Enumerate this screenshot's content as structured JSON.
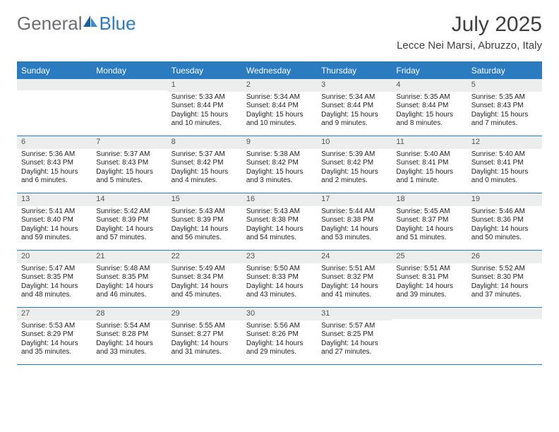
{
  "brand": {
    "word1": "General",
    "word2": "Blue",
    "word1_color": "#6d6e71",
    "word2_color": "#2a7bbf",
    "sail_color_dark": "#1f5f99",
    "sail_color_light": "#3a8ed0"
  },
  "title": "July 2025",
  "location": "Lecce Nei Marsi, Abruzzo, Italy",
  "header_bg": "#2a7bbf",
  "header_fg": "#ffffff",
  "daynum_bg": "#eceded",
  "rule_color": "#2a7bbf",
  "weekdays": [
    "Sunday",
    "Monday",
    "Tuesday",
    "Wednesday",
    "Thursday",
    "Friday",
    "Saturday"
  ],
  "weeks": [
    [
      {
        "n": "",
        "sr": "",
        "ss": "",
        "dl": ""
      },
      {
        "n": "",
        "sr": "",
        "ss": "",
        "dl": ""
      },
      {
        "n": "1",
        "sr": "Sunrise: 5:33 AM",
        "ss": "Sunset: 8:44 PM",
        "dl": "Daylight: 15 hours and 10 minutes."
      },
      {
        "n": "2",
        "sr": "Sunrise: 5:34 AM",
        "ss": "Sunset: 8:44 PM",
        "dl": "Daylight: 15 hours and 10 minutes."
      },
      {
        "n": "3",
        "sr": "Sunrise: 5:34 AM",
        "ss": "Sunset: 8:44 PM",
        "dl": "Daylight: 15 hours and 9 minutes."
      },
      {
        "n": "4",
        "sr": "Sunrise: 5:35 AM",
        "ss": "Sunset: 8:44 PM",
        "dl": "Daylight: 15 hours and 8 minutes."
      },
      {
        "n": "5",
        "sr": "Sunrise: 5:35 AM",
        "ss": "Sunset: 8:43 PM",
        "dl": "Daylight: 15 hours and 7 minutes."
      }
    ],
    [
      {
        "n": "6",
        "sr": "Sunrise: 5:36 AM",
        "ss": "Sunset: 8:43 PM",
        "dl": "Daylight: 15 hours and 6 minutes."
      },
      {
        "n": "7",
        "sr": "Sunrise: 5:37 AM",
        "ss": "Sunset: 8:43 PM",
        "dl": "Daylight: 15 hours and 5 minutes."
      },
      {
        "n": "8",
        "sr": "Sunrise: 5:37 AM",
        "ss": "Sunset: 8:42 PM",
        "dl": "Daylight: 15 hours and 4 minutes."
      },
      {
        "n": "9",
        "sr": "Sunrise: 5:38 AM",
        "ss": "Sunset: 8:42 PM",
        "dl": "Daylight: 15 hours and 3 minutes."
      },
      {
        "n": "10",
        "sr": "Sunrise: 5:39 AM",
        "ss": "Sunset: 8:42 PM",
        "dl": "Daylight: 15 hours and 2 minutes."
      },
      {
        "n": "11",
        "sr": "Sunrise: 5:40 AM",
        "ss": "Sunset: 8:41 PM",
        "dl": "Daylight: 15 hours and 1 minute."
      },
      {
        "n": "12",
        "sr": "Sunrise: 5:40 AM",
        "ss": "Sunset: 8:41 PM",
        "dl": "Daylight: 15 hours and 0 minutes."
      }
    ],
    [
      {
        "n": "13",
        "sr": "Sunrise: 5:41 AM",
        "ss": "Sunset: 8:40 PM",
        "dl": "Daylight: 14 hours and 59 minutes."
      },
      {
        "n": "14",
        "sr": "Sunrise: 5:42 AM",
        "ss": "Sunset: 8:39 PM",
        "dl": "Daylight: 14 hours and 57 minutes."
      },
      {
        "n": "15",
        "sr": "Sunrise: 5:43 AM",
        "ss": "Sunset: 8:39 PM",
        "dl": "Daylight: 14 hours and 56 minutes."
      },
      {
        "n": "16",
        "sr": "Sunrise: 5:43 AM",
        "ss": "Sunset: 8:38 PM",
        "dl": "Daylight: 14 hours and 54 minutes."
      },
      {
        "n": "17",
        "sr": "Sunrise: 5:44 AM",
        "ss": "Sunset: 8:38 PM",
        "dl": "Daylight: 14 hours and 53 minutes."
      },
      {
        "n": "18",
        "sr": "Sunrise: 5:45 AM",
        "ss": "Sunset: 8:37 PM",
        "dl": "Daylight: 14 hours and 51 minutes."
      },
      {
        "n": "19",
        "sr": "Sunrise: 5:46 AM",
        "ss": "Sunset: 8:36 PM",
        "dl": "Daylight: 14 hours and 50 minutes."
      }
    ],
    [
      {
        "n": "20",
        "sr": "Sunrise: 5:47 AM",
        "ss": "Sunset: 8:35 PM",
        "dl": "Daylight: 14 hours and 48 minutes."
      },
      {
        "n": "21",
        "sr": "Sunrise: 5:48 AM",
        "ss": "Sunset: 8:35 PM",
        "dl": "Daylight: 14 hours and 46 minutes."
      },
      {
        "n": "22",
        "sr": "Sunrise: 5:49 AM",
        "ss": "Sunset: 8:34 PM",
        "dl": "Daylight: 14 hours and 45 minutes."
      },
      {
        "n": "23",
        "sr": "Sunrise: 5:50 AM",
        "ss": "Sunset: 8:33 PM",
        "dl": "Daylight: 14 hours and 43 minutes."
      },
      {
        "n": "24",
        "sr": "Sunrise: 5:51 AM",
        "ss": "Sunset: 8:32 PM",
        "dl": "Daylight: 14 hours and 41 minutes."
      },
      {
        "n": "25",
        "sr": "Sunrise: 5:51 AM",
        "ss": "Sunset: 8:31 PM",
        "dl": "Daylight: 14 hours and 39 minutes."
      },
      {
        "n": "26",
        "sr": "Sunrise: 5:52 AM",
        "ss": "Sunset: 8:30 PM",
        "dl": "Daylight: 14 hours and 37 minutes."
      }
    ],
    [
      {
        "n": "27",
        "sr": "Sunrise: 5:53 AM",
        "ss": "Sunset: 8:29 PM",
        "dl": "Daylight: 14 hours and 35 minutes."
      },
      {
        "n": "28",
        "sr": "Sunrise: 5:54 AM",
        "ss": "Sunset: 8:28 PM",
        "dl": "Daylight: 14 hours and 33 minutes."
      },
      {
        "n": "29",
        "sr": "Sunrise: 5:55 AM",
        "ss": "Sunset: 8:27 PM",
        "dl": "Daylight: 14 hours and 31 minutes."
      },
      {
        "n": "30",
        "sr": "Sunrise: 5:56 AM",
        "ss": "Sunset: 8:26 PM",
        "dl": "Daylight: 14 hours and 29 minutes."
      },
      {
        "n": "31",
        "sr": "Sunrise: 5:57 AM",
        "ss": "Sunset: 8:25 PM",
        "dl": "Daylight: 14 hours and 27 minutes."
      },
      {
        "n": "",
        "sr": "",
        "ss": "",
        "dl": ""
      },
      {
        "n": "",
        "sr": "",
        "ss": "",
        "dl": ""
      }
    ]
  ]
}
